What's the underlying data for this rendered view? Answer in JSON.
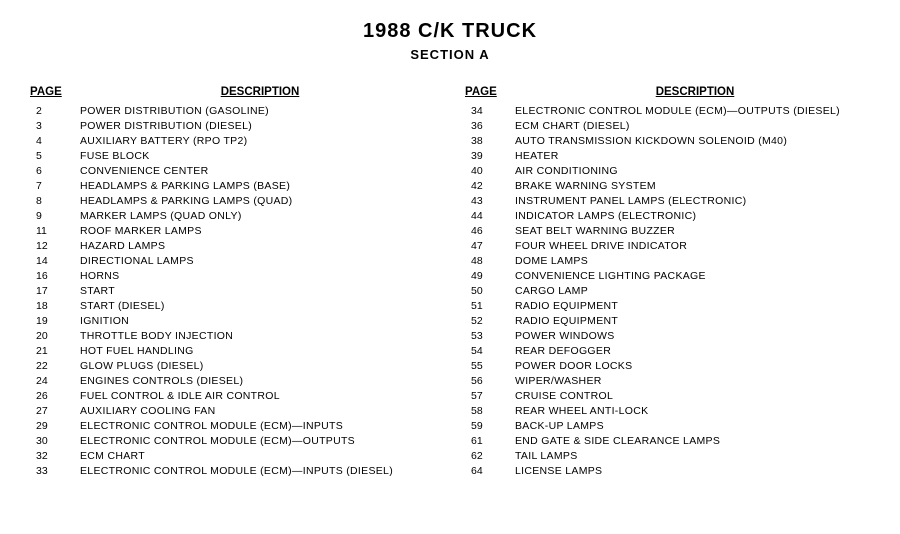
{
  "title": "1988 C/K TRUCK",
  "subtitle": "SECTION A",
  "headers": {
    "page": "PAGE",
    "description": "DESCRIPTION"
  },
  "left_column": [
    {
      "page": "2",
      "desc": "POWER DISTRIBUTION (GASOLINE)"
    },
    {
      "page": "3",
      "desc": "POWER DISTRIBUTION (DIESEL)"
    },
    {
      "page": "4",
      "desc": "AUXILIARY BATTERY (RPO TP2)"
    },
    {
      "page": "5",
      "desc": "FUSE BLOCK"
    },
    {
      "page": "6",
      "desc": "CONVENIENCE CENTER"
    },
    {
      "page": "7",
      "desc": "HEADLAMPS & PARKING LAMPS (BASE)"
    },
    {
      "page": "8",
      "desc": "HEADLAMPS & PARKING LAMPS (QUAD)"
    },
    {
      "page": "9",
      "desc": "MARKER LAMPS (QUAD ONLY)"
    },
    {
      "page": "11",
      "desc": "ROOF MARKER LAMPS"
    },
    {
      "page": "12",
      "desc": "HAZARD LAMPS"
    },
    {
      "page": "14",
      "desc": "DIRECTIONAL LAMPS"
    },
    {
      "page": "16",
      "desc": "HORNS"
    },
    {
      "page": "17",
      "desc": "START"
    },
    {
      "page": "18",
      "desc": "START (DIESEL)"
    },
    {
      "page": "19",
      "desc": "IGNITION"
    },
    {
      "page": "20",
      "desc": "THROTTLE BODY INJECTION"
    },
    {
      "page": "21",
      "desc": "HOT FUEL HANDLING"
    },
    {
      "page": "22",
      "desc": "GLOW PLUGS (DIESEL)"
    },
    {
      "page": "24",
      "desc": "ENGINES CONTROLS (DIESEL)"
    },
    {
      "page": "26",
      "desc": "FUEL CONTROL & IDLE AIR CONTROL"
    },
    {
      "page": "27",
      "desc": "AUXILIARY COOLING FAN"
    },
    {
      "page": "29",
      "desc": "ELECTRONIC CONTROL MODULE (ECM)—INPUTS"
    },
    {
      "page": "30",
      "desc": "ELECTRONIC CONTROL MODULE (ECM)—OUTPUTS"
    },
    {
      "page": "32",
      "desc": "ECM CHART"
    },
    {
      "page": "33",
      "desc": "ELECTRONIC CONTROL MODULE (ECM)—INPUTS (DIESEL)"
    }
  ],
  "right_column": [
    {
      "page": "34",
      "desc": "ELECTRONIC CONTROL MODULE (ECM)—OUTPUTS (DIESEL)"
    },
    {
      "page": "36",
      "desc": "ECM CHART (DIESEL)"
    },
    {
      "page": "38",
      "desc": "AUTO TRANSMISSION KICKDOWN SOLENOID (M40)"
    },
    {
      "page": "39",
      "desc": "HEATER"
    },
    {
      "page": "40",
      "desc": "AIR CONDITIONING"
    },
    {
      "page": "42",
      "desc": "BRAKE WARNING SYSTEM"
    },
    {
      "page": "43",
      "desc": "INSTRUMENT PANEL LAMPS (ELECTRONIC)"
    },
    {
      "page": "44",
      "desc": "INDICATOR LAMPS (ELECTRONIC)"
    },
    {
      "page": "46",
      "desc": "SEAT BELT WARNING BUZZER"
    },
    {
      "page": "47",
      "desc": "FOUR WHEEL DRIVE INDICATOR"
    },
    {
      "page": "48",
      "desc": "DOME LAMPS"
    },
    {
      "page": "49",
      "desc": "CONVENIENCE LIGHTING PACKAGE"
    },
    {
      "page": "50",
      "desc": "CARGO LAMP"
    },
    {
      "page": "51",
      "desc": "RADIO EQUIPMENT"
    },
    {
      "page": "52",
      "desc": "RADIO EQUIPMENT"
    },
    {
      "page": "53",
      "desc": "POWER WINDOWS"
    },
    {
      "page": "54",
      "desc": "REAR DEFOGGER"
    },
    {
      "page": "55",
      "desc": "POWER DOOR LOCKS"
    },
    {
      "page": "56",
      "desc": "WIPER/WASHER"
    },
    {
      "page": "57",
      "desc": "CRUISE CONTROL"
    },
    {
      "page": "58",
      "desc": "REAR WHEEL ANTI-LOCK"
    },
    {
      "page": "59",
      "desc": "BACK-UP LAMPS"
    },
    {
      "page": "61",
      "desc": "END GATE & SIDE CLEARANCE LAMPS"
    },
    {
      "page": "62",
      "desc": "TAIL LAMPS"
    },
    {
      "page": "64",
      "desc": "LICENSE LAMPS"
    }
  ],
  "colors": {
    "background": "#ffffff",
    "text": "#000000"
  },
  "typography": {
    "title_fontsize": 20,
    "subtitle_fontsize": 13,
    "header_fontsize": 11.5,
    "body_fontsize": 10.5,
    "font_family": "Arial"
  }
}
